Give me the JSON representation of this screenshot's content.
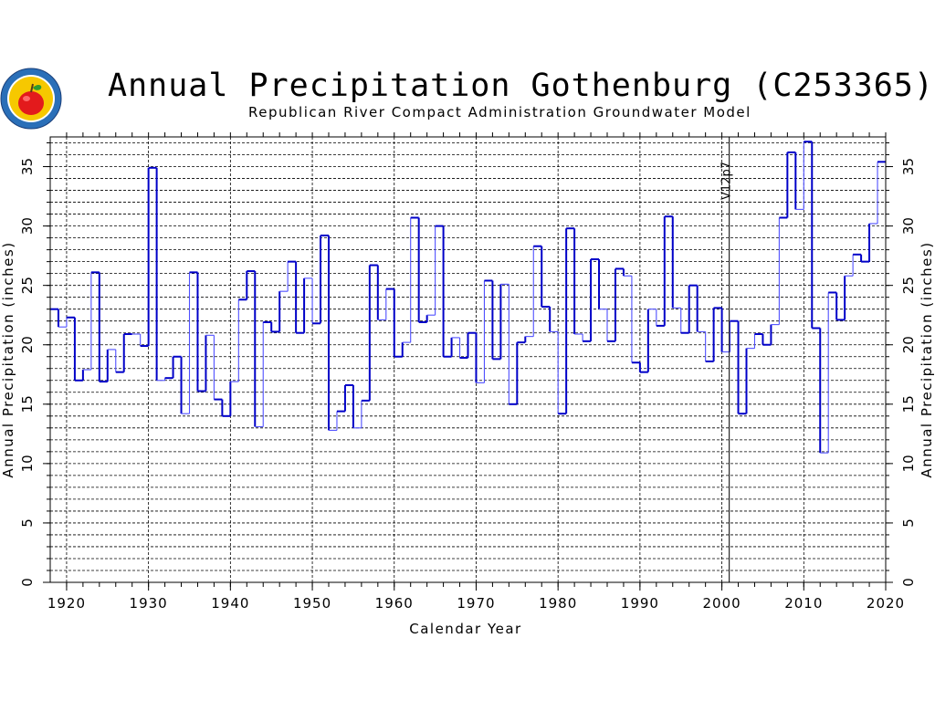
{
  "title": "Annual Precipitation Gothenburg (C253365)",
  "subtitle": "Republican River Compact Administration Groundwater Model",
  "logo": {
    "icon": "apple-seal-icon",
    "colors": {
      "ring": "#2a6fb8",
      "inner": "#f6c800",
      "apple": "#e31a1c"
    }
  },
  "colors": {
    "line_dark": "#0000c8",
    "line_light": "#5050ff",
    "grid": "#000000",
    "marker": "#000000"
  },
  "chart_data": {
    "type": "line",
    "step": true,
    "xlabel": "Calendar Year",
    "ylabel": "Annual Precipitation (inches)",
    "xlim": [
      1918,
      2020
    ],
    "ylim": [
      0,
      37.5
    ],
    "x_ticks": [
      1920,
      1930,
      1940,
      1950,
      1960,
      1970,
      1980,
      1990,
      2000,
      2010,
      2020
    ],
    "y_ticks": [
      0,
      5,
      10,
      15,
      20,
      25,
      30,
      35
    ],
    "grid": true,
    "minor_y_grid": 1,
    "minor_x_grid_years": [
      1920,
      1930,
      1940,
      1950,
      1960,
      1970,
      1980,
      1990,
      2000,
      2010
    ],
    "annotations": [
      {
        "text": "V12p7",
        "x": 2000.9
      }
    ],
    "series": [
      {
        "years": [
          1918,
          1919,
          1920,
          1921,
          1922,
          1923,
          1924,
          1925,
          1926,
          1927,
          1928,
          1929,
          1930,
          1931,
          1932,
          1933,
          1934,
          1935,
          1936,
          1937,
          1938,
          1939,
          1940,
          1941,
          1942,
          1943,
          1944,
          1945,
          1946,
          1947,
          1948,
          1949,
          1950,
          1951,
          1952,
          1953,
          1954,
          1955,
          1956,
          1957,
          1958,
          1959,
          1960,
          1961,
          1962,
          1963,
          1964,
          1965,
          1966,
          1967,
          1968,
          1969,
          1970,
          1971,
          1972,
          1973,
          1974,
          1975,
          1976,
          1977,
          1978,
          1979,
          1980,
          1981,
          1982,
          1983,
          1984,
          1985,
          1986,
          1987,
          1988,
          1989,
          1990,
          1991,
          1992,
          1993,
          1994,
          1995,
          1996,
          1997,
          1998,
          1999,
          2000,
          2001,
          2002,
          2003,
          2004,
          2005,
          2006,
          2007,
          2008,
          2009,
          2010,
          2011,
          2012,
          2013,
          2014,
          2015,
          2016,
          2017,
          2018,
          2019
        ],
        "values": [
          23.0,
          21.5,
          22.3,
          17.0,
          17.9,
          26.1,
          16.9,
          19.6,
          17.7,
          20.9,
          20.9,
          19.9,
          34.9,
          17.0,
          17.2,
          19.0,
          14.2,
          26.1,
          16.1,
          20.8,
          15.4,
          14.0,
          16.9,
          23.8,
          26.2,
          13.1,
          21.9,
          21.1,
          24.5,
          27.0,
          21.0,
          25.6,
          21.8,
          29.2,
          12.8,
          14.4,
          16.6,
          13.0,
          15.3,
          26.7,
          22.1,
          24.7,
          19.0,
          20.2,
          30.7,
          21.9,
          22.5,
          30.0,
          19.0,
          20.6,
          18.9,
          21.0,
          16.8,
          25.4,
          18.8,
          25.1,
          15.0,
          20.2,
          20.7,
          28.3,
          23.2,
          21.1,
          14.2,
          29.8,
          20.9,
          20.3,
          27.2,
          23.0,
          20.3,
          26.4,
          25.8,
          18.5,
          17.7,
          23.0,
          21.6,
          30.8,
          23.1,
          21.0,
          25.0,
          21.1,
          18.6,
          23.1,
          19.4,
          22.0,
          14.2,
          19.7,
          20.9,
          20.0,
          21.7,
          30.7,
          36.2,
          31.4,
          37.1,
          21.4,
          10.9,
          24.4,
          22.1,
          25.8,
          27.6,
          27.0,
          30.2,
          35.4
        ]
      }
    ]
  }
}
